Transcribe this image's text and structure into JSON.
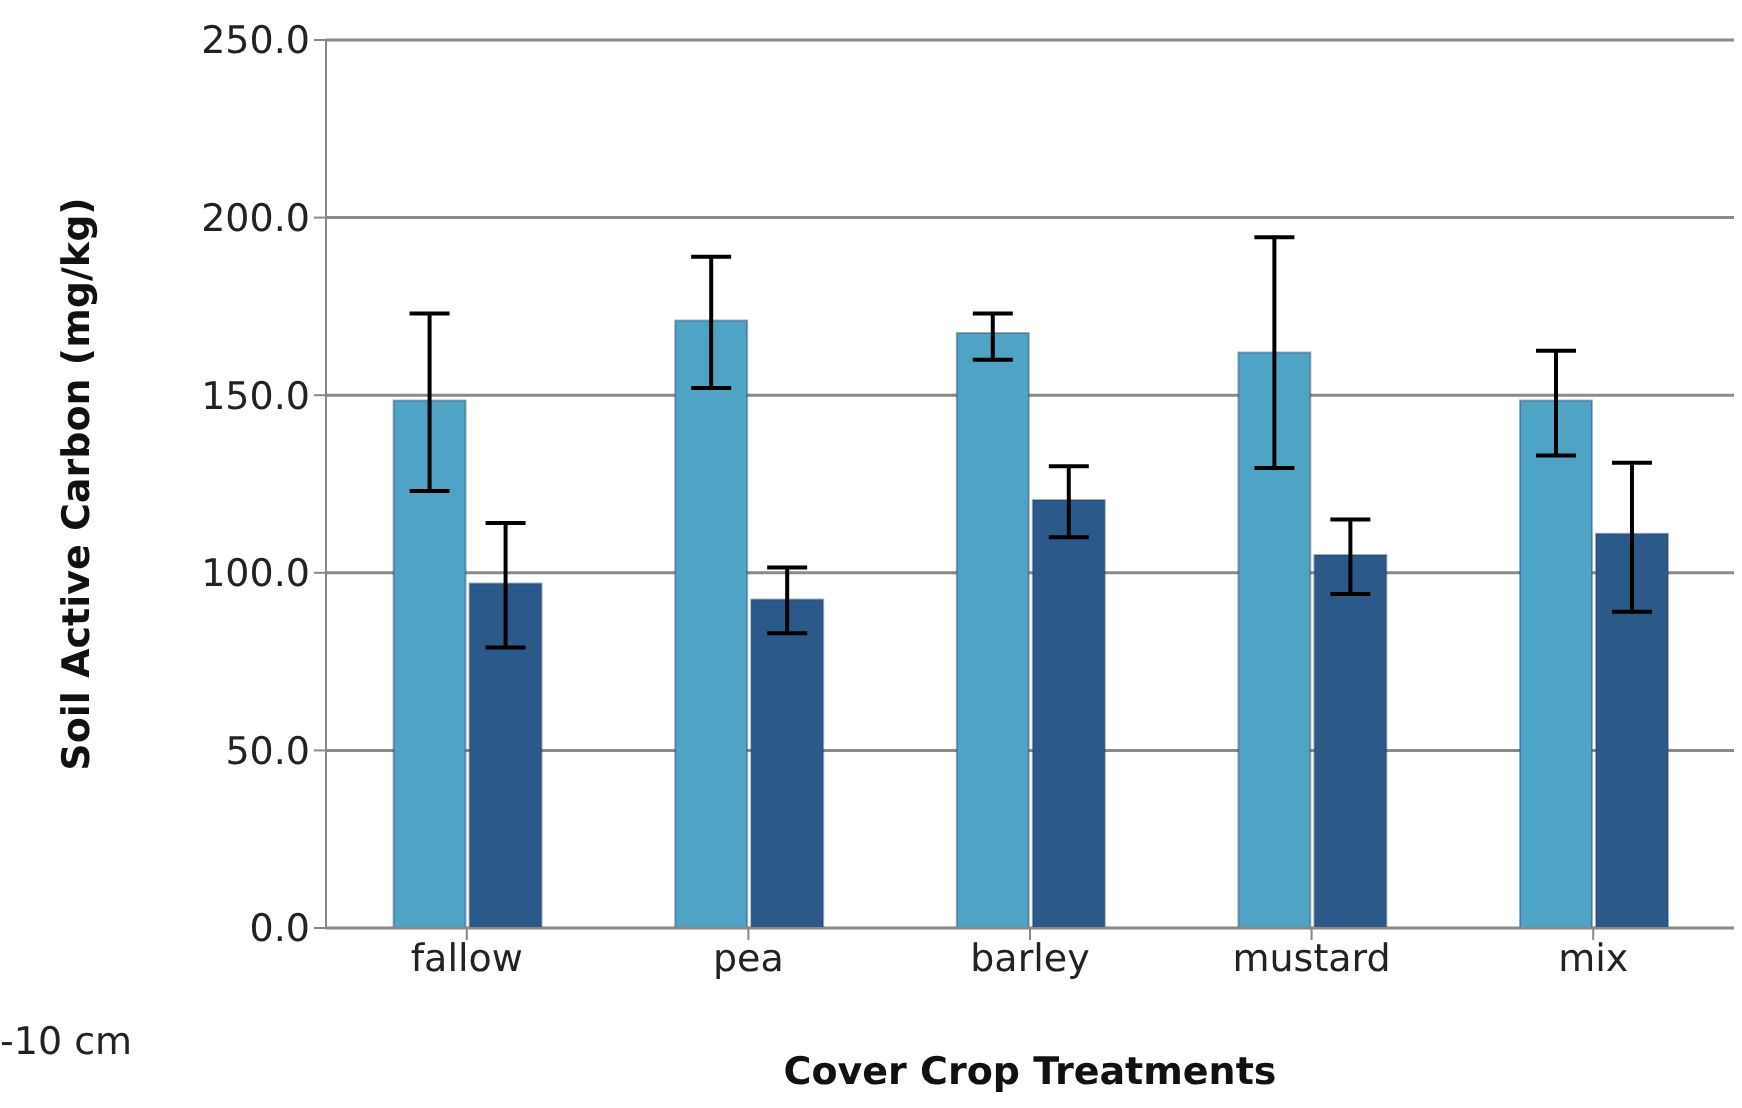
{
  "chart_data": {
    "type": "bar",
    "xlabel": "Cover Crop Treatments",
    "ylabel": "Soil Active Carbon (mg/kg)",
    "categories": [
      "fallow",
      "pea",
      "barley",
      "mustard",
      "mix"
    ],
    "series": [
      {
        "color": "#4fa3c4",
        "values": [
          148.5,
          171,
          167.5,
          162,
          148.5
        ],
        "errors": [
          [
            123,
            173
          ],
          [
            152,
            189
          ],
          [
            160,
            173
          ],
          [
            129.5,
            194.5
          ],
          [
            133,
            162.5
          ]
        ]
      },
      {
        "color": "#2b5a8a",
        "values": [
          97,
          92.5,
          120.5,
          105,
          111
        ],
        "errors": [
          [
            79,
            114
          ],
          [
            83,
            101.5
          ],
          [
            110,
            130
          ],
          [
            94,
            115
          ],
          [
            89,
            131
          ]
        ]
      }
    ],
    "ylim": [
      0,
      250
    ],
    "yticks": [
      {
        "value": 0,
        "label": "0.0"
      },
      {
        "value": 50,
        "label": "50.0"
      },
      {
        "value": 100,
        "label": "100.0"
      },
      {
        "value": 150,
        "label": "150.0"
      },
      {
        "value": 200,
        "label": "200.0"
      },
      {
        "value": 250,
        "label": "250.0"
      }
    ],
    "grid": "y",
    "annotations": [
      "-10 cm"
    ]
  }
}
